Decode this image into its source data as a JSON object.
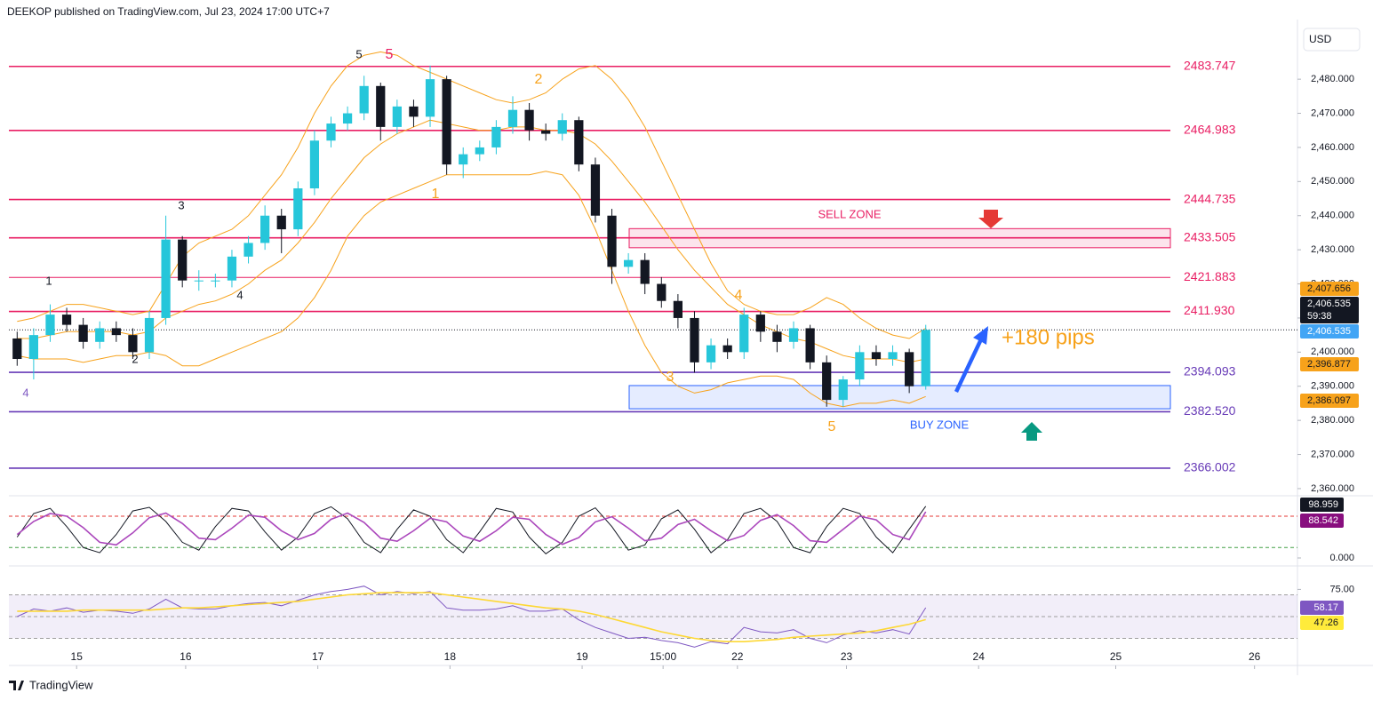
{
  "header": {
    "title": "DEEKOP published on TradingView.com, Jul 23, 2024 17:00 UTC+7",
    "currency": "USD",
    "brand": "TradingView"
  },
  "chart_data": [
    {
      "type": "candlestick",
      "up_color": "#26c6da",
      "down_color": "#131722",
      "xlim": [
        -0.5,
        77.5
      ],
      "xticks": [
        {
          "value": 3.6,
          "label": "15"
        },
        {
          "value": 10.2,
          "label": "16"
        },
        {
          "value": 18.2,
          "label": "17"
        },
        {
          "value": 26.2,
          "label": "18"
        },
        {
          "value": 34.2,
          "label": "19"
        },
        {
          "value": 39.1,
          "label": "15:00"
        },
        {
          "value": 43.6,
          "label": "22"
        },
        {
          "value": 50.2,
          "label": "23"
        },
        {
          "value": 58.2,
          "label": "24"
        },
        {
          "value": 66.5,
          "label": "25"
        },
        {
          "value": 74.9,
          "label": "26"
        }
      ],
      "ylim": [
        2357.9,
        2496.7
      ],
      "yticks": [
        {
          "value": 2360,
          "label": "2,360.000"
        },
        {
          "value": 2370,
          "label": "2,370.000"
        },
        {
          "value": 2380,
          "label": "2,380.000"
        },
        {
          "value": 2390,
          "label": "2,390.000"
        },
        {
          "value": 2400,
          "label": "2,400.000"
        },
        {
          "value": 2410,
          "label": "2,410.000"
        },
        {
          "value": 2420,
          "label": "2,420.000"
        },
        {
          "value": 2430,
          "label": "2,430.000"
        },
        {
          "value": 2440,
          "label": "2,440.000"
        },
        {
          "value": 2450,
          "label": "2,450.000"
        },
        {
          "value": 2460,
          "label": "2,460.000"
        },
        {
          "value": 2470,
          "label": "2,470.000"
        },
        {
          "value": 2480,
          "label": "2,480.000"
        }
      ],
      "open": [
        2404,
        2398,
        2405,
        2411,
        2408,
        2403,
        2407,
        2405,
        2400,
        2410,
        2433,
        2421,
        2421,
        2421,
        2428,
        2432,
        2440,
        2436,
        2448,
        2462,
        2467,
        2470,
        2478,
        2466,
        2472,
        2469,
        2480,
        2455,
        2458,
        2460,
        2466,
        2471,
        2465,
        2464,
        2468,
        2455,
        2440,
        2425,
        2427,
        2420,
        2415,
        2410,
        2397,
        2402,
        2400,
        2411,
        2406,
        2403,
        2407,
        2397,
        2386,
        2392,
        2400,
        2398,
        2400,
        2390
      ],
      "high": [
        2406,
        2407,
        2414,
        2413,
        2410,
        2409,
        2409,
        2407,
        2412,
        2440,
        2434,
        2424,
        2423,
        2430,
        2434,
        2443,
        2442,
        2450,
        2465,
        2469,
        2472,
        2481,
        2479,
        2474,
        2474,
        2484,
        2481,
        2460,
        2462,
        2468,
        2475,
        2473,
        2467,
        2470,
        2469,
        2457,
        2442,
        2429,
        2429,
        2422,
        2417,
        2412,
        2404,
        2404,
        2413,
        2412,
        2408,
        2409,
        2408,
        2399,
        2393,
        2402,
        2402,
        2402,
        2401,
        2408
      ],
      "low": [
        2396,
        2392,
        2403,
        2406,
        2401,
        2401,
        2403,
        2398,
        2398,
        2408,
        2419,
        2418,
        2419,
        2419,
        2426,
        2430,
        2429,
        2434,
        2446,
        2460,
        2465,
        2468,
        2462,
        2464,
        2466,
        2466,
        2452,
        2451,
        2456,
        2458,
        2464,
        2462,
        2462,
        2462,
        2453,
        2438,
        2420,
        2423,
        2417,
        2413,
        2407,
        2394,
        2395,
        2398,
        2398,
        2403,
        2400,
        2401,
        2395,
        2384,
        2384,
        2390,
        2396,
        2396,
        2388,
        2389
      ],
      "close": [
        2398,
        2405,
        2411,
        2408,
        2403,
        2407,
        2405,
        2400,
        2410,
        2433,
        2421,
        2421,
        2421,
        2428,
        2432,
        2440,
        2436,
        2448,
        2462,
        2467,
        2470,
        2478,
        2466,
        2472,
        2469,
        2480,
        2455,
        2458,
        2460,
        2466,
        2471,
        2465,
        2464,
        2468,
        2455,
        2440,
        2425,
        2427,
        2420,
        2415,
        2410,
        2397,
        2402,
        2400,
        2411,
        2406,
        2403,
        2407,
        2397,
        2386,
        2392,
        2400,
        2398,
        2400,
        2390,
        2406.535
      ],
      "bands": [
        {
          "color": "#f7a21b",
          "values": [
            2409,
            2410,
            2412,
            2414,
            2414,
            2413,
            2412,
            2411,
            2412,
            2420,
            2428,
            2432,
            2434,
            2436,
            2440,
            2446,
            2452,
            2460,
            2470,
            2478,
            2484,
            2487,
            2488,
            2487,
            2484,
            2482,
            2480,
            2478,
            2476,
            2474,
            2473,
            2474,
            2476,
            2480,
            2483,
            2484,
            2480,
            2474,
            2466,
            2456,
            2446,
            2436,
            2426,
            2418,
            2414,
            2412,
            2411,
            2411,
            2413,
            2416,
            2414,
            2410,
            2407,
            2405,
            2404,
            2407
          ]
        },
        {
          "color": "#f7a21b",
          "values": [
            2404,
            2404,
            2405,
            2406,
            2406,
            2406,
            2406,
            2405,
            2406,
            2410,
            2412,
            2414,
            2415,
            2417,
            2420,
            2424,
            2427,
            2432,
            2438,
            2445,
            2451,
            2457,
            2461,
            2464,
            2466,
            2468,
            2467,
            2466,
            2465,
            2465,
            2466,
            2466,
            2465,
            2465,
            2464,
            2461,
            2456,
            2450,
            2444,
            2437,
            2430,
            2424,
            2419,
            2414,
            2411,
            2408,
            2406,
            2404,
            2403,
            2401,
            2399,
            2398,
            2398,
            2398,
            2397,
            2398
          ]
        },
        {
          "color": "#f7a21b",
          "values": [
            2399,
            2398,
            2398,
            2398,
            2397,
            2398,
            2399,
            2399,
            2400,
            2399,
            2396,
            2396,
            2398,
            2400,
            2402,
            2404,
            2406,
            2410,
            2416,
            2424,
            2434,
            2440,
            2444,
            2446,
            2448,
            2450,
            2452,
            2452,
            2452,
            2452,
            2452,
            2452,
            2453,
            2452,
            2446,
            2436,
            2424,
            2412,
            2402,
            2394,
            2390,
            2388,
            2389,
            2391,
            2392,
            2393,
            2393,
            2392,
            2388,
            2385,
            2384,
            2385,
            2385,
            2386,
            2385,
            2387
          ]
        }
      ],
      "levels": [
        {
          "value": 2483.747,
          "label": "2483.747",
          "color": "#e91e63"
        },
        {
          "value": 2464.983,
          "label": "2464.983",
          "color": "#e91e63"
        },
        {
          "value": 2444.735,
          "label": "2444.735",
          "color": "#e91e63"
        },
        {
          "value": 2433.505,
          "label": "2433.505",
          "color": "#e91e63"
        },
        {
          "value": 2421.883,
          "label": "2421.883",
          "color": "#e91e63"
        },
        {
          "value": 2411.93,
          "label": "2411.930",
          "color": "#e91e63"
        },
        {
          "value": 2394.093,
          "label": "2394.093",
          "color": "#673ab7"
        },
        {
          "value": 2382.52,
          "label": "2382.520",
          "color": "#673ab7"
        },
        {
          "value": 2366.002,
          "label": "2366.002",
          "color": "#673ab7"
        }
      ],
      "zones": [
        {
          "label": "SELL ZONE",
          "range": [
            2430.6,
            2436.2
          ],
          "color": "#e91e63"
        },
        {
          "label": "BUY ZONE",
          "range": [
            2383.4,
            2390.2
          ],
          "color": "#2962ff"
        }
      ],
      "annotation": "+180 pips",
      "wave_labels": [
        {
          "text": "5",
          "color": "#131722"
        },
        {
          "text": "5",
          "color": "#e91e63"
        },
        {
          "text": "2",
          "color": "#f7a21b"
        },
        {
          "text": "1",
          "color": "#f7a21b"
        },
        {
          "text": "3",
          "color": "#131722"
        },
        {
          "text": "1",
          "color": "#131722"
        },
        {
          "text": "4",
          "color": "#131722"
        },
        {
          "text": "2",
          "color": "#131722"
        },
        {
          "text": "4",
          "color": "#7e57c2"
        },
        {
          "text": "4",
          "color": "#f7a21b"
        },
        {
          "text": "3",
          "color": "#f7a21b"
        },
        {
          "text": "5",
          "color": "#f7a21b"
        }
      ],
      "tags": [
        {
          "value": 2407.656,
          "label": "2,407.656",
          "color": "#f7a21b"
        },
        {
          "value": 2406.535,
          "label": "2,406.535",
          "color": "#131722",
          "countdown": "59:38"
        },
        {
          "value": 2406.535,
          "label": "2,406.535",
          "color": "#42a5f5"
        },
        {
          "value": 2396.877,
          "label": "2,396.877",
          "color": "#f7a21b"
        },
        {
          "value": 2386.097,
          "label": "2,386.097",
          "color": "#f7a21b"
        }
      ]
    },
    {
      "type": "line",
      "ylim": [
        -11.9,
        115.7
      ],
      "yticks": [
        {
          "value": 0,
          "label": "0.000"
        }
      ],
      "hlines": [
        {
          "value": 80,
          "color": "#e53935"
        },
        {
          "value": 20,
          "color": "#43a047"
        }
      ],
      "series": [
        {
          "color": "#131722",
          "values": [
            40,
            85,
            95,
            60,
            20,
            10,
            45,
            90,
            97,
            70,
            30,
            15,
            60,
            95,
            90,
            50,
            15,
            40,
            85,
            98,
            75,
            30,
            10,
            55,
            92,
            80,
            35,
            10,
            50,
            95,
            88,
            40,
            8,
            30,
            80,
            96,
            60,
            15,
            25,
            75,
            92,
            55,
            10,
            35,
            85,
            95,
            70,
            20,
            10,
            60,
            95,
            85,
            40,
            10,
            55,
            98.959
          ]
        },
        {
          "color": "#ab47bc",
          "values": [
            45,
            70,
            85,
            80,
            58,
            30,
            25,
            48,
            77,
            86,
            66,
            38,
            35,
            57,
            82,
            78,
            52,
            35,
            47,
            74,
            86,
            68,
            38,
            32,
            52,
            76,
            69,
            42,
            32,
            52,
            78,
            74,
            45,
            26,
            39,
            69,
            79,
            57,
            33,
            38,
            64,
            74,
            52,
            33,
            43,
            72,
            83,
            62,
            33,
            30,
            55,
            80,
            73,
            45,
            35,
            88.542
          ]
        }
      ],
      "tags": [
        {
          "value": 98.959,
          "label": "98.959",
          "color": "#131722"
        },
        {
          "value": 88.542,
          "label": "88.542",
          "color": "#880e7e"
        }
      ]
    },
    {
      "type": "line",
      "ylim": [
        5.9,
        94.1
      ],
      "yticks": [
        {
          "value": 75,
          "label": "75.00"
        }
      ],
      "band": [
        30,
        70
      ],
      "hlines": [
        {
          "value": 70,
          "color": "#9e9e9e"
        },
        {
          "value": 50,
          "color": "#9e9e9e"
        },
        {
          "value": 30,
          "color": "#9e9e9e"
        }
      ],
      "series": [
        {
          "color": "#7e57c2",
          "values": [
            50,
            57,
            55,
            58,
            54,
            56,
            55,
            53,
            57,
            66,
            58,
            57,
            57,
            60,
            62,
            63,
            60,
            65,
            70,
            73,
            75,
            78,
            70,
            73,
            71,
            73,
            58,
            56,
            56,
            57,
            60,
            55,
            55,
            57,
            47,
            40,
            35,
            30,
            31,
            28,
            26,
            22,
            27,
            25,
            40,
            36,
            35,
            38,
            30,
            26,
            33,
            37,
            35,
            38,
            34,
            58.17
          ]
        },
        {
          "color": "#fdd835",
          "values": [
            55,
            55,
            55,
            55,
            56,
            56,
            56,
            56,
            56,
            57,
            58,
            58,
            59,
            60,
            61,
            62,
            63,
            64,
            66,
            68,
            70,
            71,
            72,
            72,
            72,
            72,
            70,
            68,
            66,
            64,
            62,
            60,
            58,
            57,
            55,
            52,
            48,
            44,
            40,
            36,
            33,
            30,
            28,
            27,
            27,
            28,
            29,
            31,
            32,
            33,
            34,
            35,
            37,
            40,
            43,
            47.26
          ]
        }
      ],
      "tags": [
        {
          "value": 58.17,
          "label": "58.17",
          "color": "#7e57c2"
        },
        {
          "value": 47.26,
          "label": "47.26",
          "color": "#ffeb3b"
        }
      ]
    }
  ]
}
